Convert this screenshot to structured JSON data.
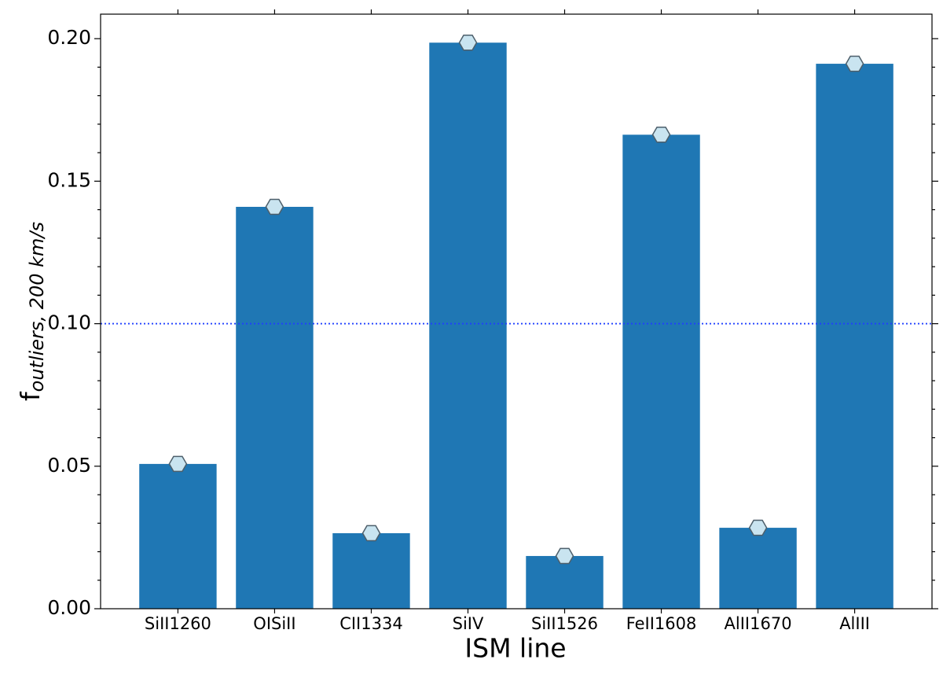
{
  "chart_data": {
    "type": "bar",
    "categories": [
      "SiII1260",
      "OISiII",
      "CII1334",
      "SiIV",
      "SiII1526",
      "FeII1608",
      "AlII1670",
      "AlIII"
    ],
    "values": [
      0.0508,
      0.141,
      0.0265,
      0.1986,
      0.0185,
      0.1663,
      0.0284,
      0.1912
    ],
    "color": "#1f77b4",
    "marker": {
      "shape": "hexagon",
      "fill": "#c9e4f0",
      "edge": "#4d5f6b"
    },
    "hline": {
      "value": 0.1,
      "color": "#1f3fff",
      "style": "dotted"
    },
    "xlabel": "ISM line",
    "ylabel": "f",
    "ylabel_sub": "outliers, 200 km/s",
    "ylim": [
      0,
      0.2086
    ],
    "yticks": [
      {
        "value": 0,
        "label": "0.00"
      },
      {
        "value": 0.05,
        "label": "0.05"
      },
      {
        "value": 0.1,
        "label": "0.10"
      },
      {
        "value": 0.15,
        "label": "0.15"
      },
      {
        "value": 0.2,
        "label": "0.20"
      }
    ],
    "yminorticks": [
      0.01,
      0.02,
      0.03,
      0.04,
      0.06,
      0.07,
      0.08,
      0.09,
      0.11,
      0.12,
      0.13,
      0.14,
      0.16,
      0.17,
      0.18,
      0.19
    ],
    "grid": false
  }
}
